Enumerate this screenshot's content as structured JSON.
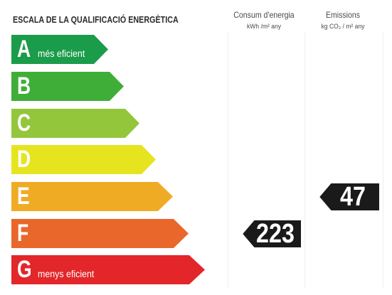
{
  "header": {
    "scale_title": "ESCALA DE LA QUALIFICACIÓ ENERGÈTICA",
    "energy_column": {
      "title": "Consum d'energia",
      "unit": "kWh /m² any"
    },
    "emissions_column": {
      "title": "Emissions",
      "unit": "kg CO₂ / m² any"
    }
  },
  "rating_bars": [
    {
      "letter": "A",
      "caption": "més eficient",
      "color": "#1b9c4a"
    },
    {
      "letter": "B",
      "caption": "",
      "color": "#3fae38"
    },
    {
      "letter": "C",
      "caption": "",
      "color": "#94c63c"
    },
    {
      "letter": "D",
      "caption": "",
      "color": "#e6e41f"
    },
    {
      "letter": "E",
      "caption": "",
      "color": "#f0ab25"
    },
    {
      "letter": "F",
      "caption": "",
      "color": "#e9672a"
    },
    {
      "letter": "G",
      "caption": "menys eficient",
      "color": "#e3262a"
    }
  ],
  "ratings": {
    "energy": {
      "value": "223",
      "class": "F"
    },
    "emissions": {
      "value": "47",
      "class": "E"
    }
  },
  "colors": {
    "indicator": "#1a1a1a",
    "indicator_border": "#ffffff"
  }
}
